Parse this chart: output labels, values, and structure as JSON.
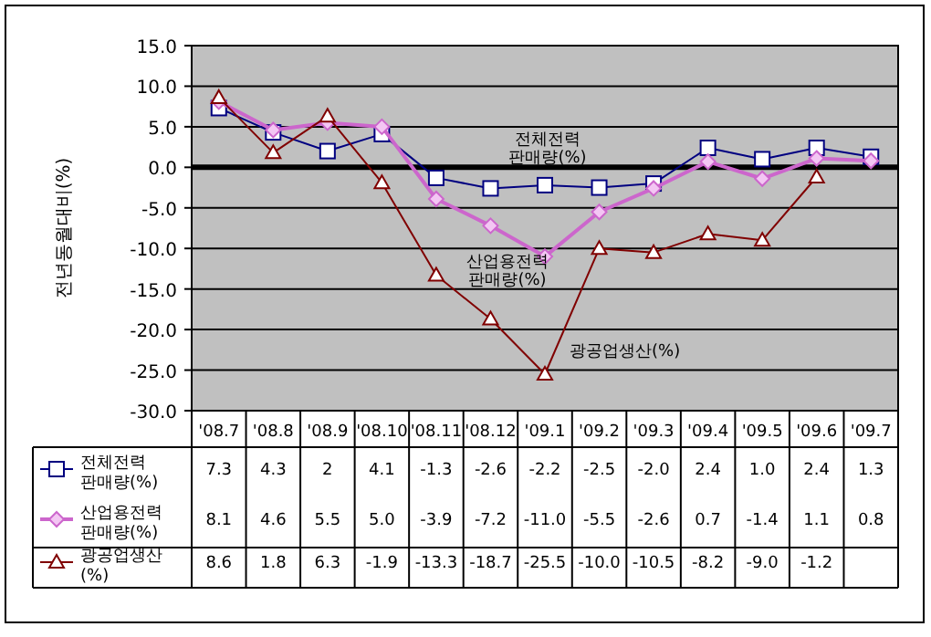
{
  "chart_data": {
    "type": "line",
    "ylabel": "전년동월대비(%)",
    "categories": [
      "'08.7",
      "'08.8",
      "'08.9",
      "'08.10",
      "'08.11",
      "'08.12",
      "'09.1",
      "'09.2",
      "'09.3",
      "'09.4",
      "'09.5",
      "'09.6",
      "'09.7"
    ],
    "series": [
      {
        "name": "전체전력 판매량(%)",
        "color": "#000080",
        "marker": "square",
        "values": [
          7.3,
          4.3,
          2.0,
          4.1,
          -1.3,
          -2.6,
          -2.2,
          -2.5,
          -2.0,
          2.4,
          1.0,
          2.4,
          1.3
        ],
        "value_labels": [
          "7.3",
          "4.3",
          "2",
          "4.1",
          "-1.3",
          "-2.6",
          "-2.2",
          "-2.5",
          "-2.0",
          "2.4",
          "1.0",
          "2.4",
          "1.3"
        ]
      },
      {
        "name": "산업용전력 판매량(%)",
        "color": "#cc66cc",
        "marker": "diamond",
        "values": [
          8.1,
          4.6,
          5.5,
          5.0,
          -3.9,
          -7.2,
          -11.0,
          -5.5,
          -2.6,
          0.7,
          -1.4,
          1.1,
          0.8
        ],
        "value_labels": [
          "8.1",
          "4.6",
          "5.5",
          "5.0",
          "-3.9",
          "-7.2",
          "-11.0",
          "-5.5",
          "-2.6",
          "0.7",
          "-1.4",
          "1.1",
          "0.8"
        ]
      },
      {
        "name": "광공업생산(%)",
        "color": "#800000",
        "marker": "triangle",
        "values": [
          8.6,
          1.8,
          6.3,
          -1.9,
          -13.3,
          -18.7,
          -25.5,
          -10.0,
          -10.5,
          -8.2,
          -9.0,
          -1.2,
          null
        ],
        "value_labels": [
          "8.6",
          "1.8",
          "6.3",
          "-1.9",
          "-13.3",
          "-18.7",
          "-25.5",
          "-10.0",
          "-10.5",
          "-8.2",
          "-9.0",
          "-1.2",
          null
        ]
      }
    ],
    "ylim": [
      -30,
      15
    ],
    "yticks": [
      {
        "value": 15,
        "label": "15.0"
      },
      {
        "value": 10,
        "label": "10.0"
      },
      {
        "value": 5,
        "label": "5.0"
      },
      {
        "value": 0,
        "label": "0.0"
      },
      {
        "value": -5,
        "label": "-5.0"
      },
      {
        "value": -10,
        "label": "-10.0"
      },
      {
        "value": -15,
        "label": "-15.0"
      },
      {
        "value": -20,
        "label": "-20.0"
      },
      {
        "value": -25,
        "label": "-25.0"
      },
      {
        "value": -30,
        "label": "-30.0"
      }
    ],
    "ref_lines": [
      {
        "axis": "y",
        "value": 0,
        "color": "#000000"
      }
    ],
    "grid": "y",
    "legend": "bottom",
    "annotations": [
      "전체전력 판매량(%)",
      "산업용전력 판매량(%)",
      "광공업생산(%)"
    ]
  }
}
